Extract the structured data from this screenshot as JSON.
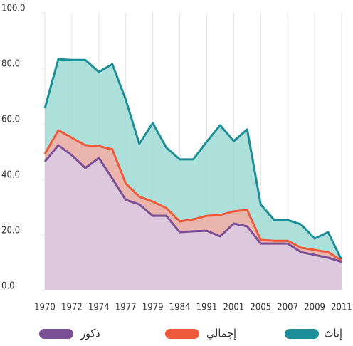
{
  "chart_data": {
    "type": "area",
    "categories": [
      "1970",
      null,
      "1972",
      null,
      "1974",
      null,
      "1977",
      null,
      "1979",
      null,
      "1984",
      null,
      "1991",
      null,
      "2001",
      null,
      "2005",
      null,
      "2007",
      null,
      "2009",
      null,
      "2011"
    ],
    "series": [
      {
        "name": "إناث",
        "color": "#1d8d98",
        "fill": "#9fdad4",
        "values": [
          65.6,
          83.3,
          83,
          83,
          78.7,
          81.5,
          68.7,
          52.8,
          60.3,
          51.5,
          47.2,
          47.2,
          53.6,
          59.5,
          53.8,
          58,
          31,
          25.4,
          25.4,
          23.8,
          18.7,
          21,
          11
        ]
      },
      {
        "name": "إجمالي",
        "color": "#ee5a3a",
        "fill": "#f3ada4",
        "values": [
          49.2,
          57.7,
          55,
          52.3,
          52,
          50.8,
          38.5,
          33.8,
          32,
          29.7,
          24.9,
          25.6,
          26.9,
          27.2,
          28.5,
          29,
          18.2,
          17.9,
          17.9,
          15.4,
          14.6,
          13.8,
          10.8
        ]
      },
      {
        "name": "ذكور",
        "color": "#7a4f96",
        "fill": "#dacbe5",
        "values": [
          46.4,
          52.3,
          48.7,
          44.1,
          47.7,
          40.3,
          32.6,
          31,
          26.9,
          26.9,
          21,
          21.3,
          21.5,
          19.5,
          24.1,
          23.1,
          16.9,
          16.9,
          16.9,
          13.8,
          12.8,
          11.8,
          10.3
        ]
      }
    ],
    "ylim": [
      0,
      100
    ],
    "yticks": [
      {
        "value": 0,
        "label": "0.0"
      },
      {
        "value": 20,
        "label": "20.0"
      },
      {
        "value": 40,
        "label": "40.0"
      },
      {
        "value": 60,
        "label": "60.0"
      },
      {
        "value": 80,
        "label": "80.0"
      },
      {
        "value": 100,
        "label": "100.0"
      }
    ],
    "grid": true
  }
}
